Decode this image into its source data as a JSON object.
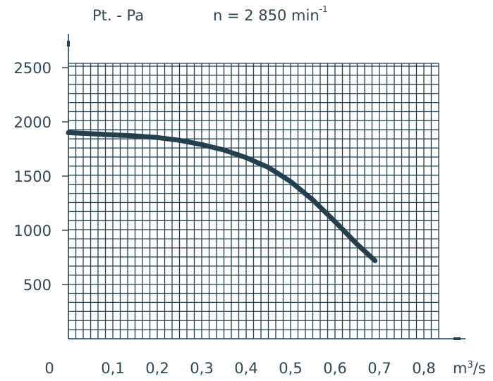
{
  "header": {
    "pressure_label": "Pt. - Pa",
    "speed_label": "n = 2 850 min",
    "speed_exponent": "-1"
  },
  "chart_data": {
    "type": "line",
    "title": "",
    "xlabel": "m³/s",
    "ylabel": "Pt. - Pa",
    "xlim": [
      0,
      0.87
    ],
    "ylim": [
      0,
      2800
    ],
    "grid": true,
    "x_ticks": [
      0.1,
      0.2,
      0.3,
      0.4,
      0.5,
      0.6,
      0.7,
      0.8
    ],
    "x_tick_labels": [
      "0,1",
      "0,2",
      "0,3",
      "0,4",
      "0,5",
      "0,6",
      "0,7",
      "0,8"
    ],
    "origin_label": "0",
    "y_ticks": [
      500,
      1000,
      1500,
      2000,
      2500
    ],
    "y_tick_labels": [
      "500",
      "1000",
      "1500",
      "2000",
      "2500"
    ],
    "x_unit_base": "m",
    "x_unit_sup": "3",
    "x_unit_rest": "/s",
    "series": [
      {
        "color": "#243f4e",
        "x": [
          0.0,
          0.05,
          0.1,
          0.15,
          0.2,
          0.25,
          0.3,
          0.35,
          0.4,
          0.45,
          0.5,
          0.55,
          0.6,
          0.65,
          0.69
        ],
        "y": [
          1900,
          1890,
          1880,
          1870,
          1855,
          1830,
          1790,
          1740,
          1670,
          1580,
          1450,
          1280,
          1080,
          870,
          720
        ]
      }
    ],
    "colors": {
      "grid": "#243f4e",
      "curve": "#243f4e",
      "text": "#2f4552"
    }
  }
}
